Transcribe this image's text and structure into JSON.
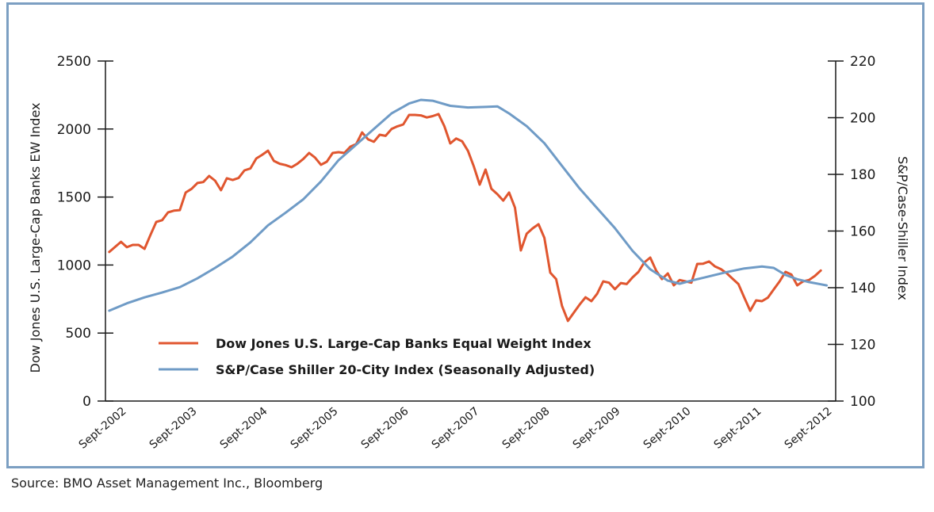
{
  "chart_data": {
    "type": "line",
    "title": "",
    "source_note": "Source: BMO Asset Management Inc., Bloomberg",
    "x_tick_labels": [
      "Sept-2002",
      "Sept-2003",
      "Sept-2004",
      "Sept-2005",
      "Sept-2006",
      "Sept-2007",
      "Sept-2008",
      "Sept-2009",
      "Sept-2010",
      "Sept-2011",
      "Sept-2012"
    ],
    "x_unit": "months since Sept-2002",
    "xlim": [
      -3,
      120
    ],
    "y_left": {
      "label": "Dow Jones U.S. Large-Cap Banks EW Index",
      "ylim": [
        0,
        2500
      ],
      "ticks": [
        0,
        500,
        1000,
        1500,
        2000,
        2500
      ]
    },
    "y_right": {
      "label": "S&P/Case-Shiller Index",
      "ylim": [
        100,
        220
      ],
      "ticks": [
        100,
        120,
        140,
        160,
        180,
        200,
        220
      ]
    },
    "grid": false,
    "legend_position": "lower-left-inside",
    "series": [
      {
        "name": "Dow Jones U.S. Large-Cap Banks Equal Weight Index",
        "axis": "left",
        "color": "#e0562f",
        "points": [
          [
            -3,
            1096
          ],
          [
            -1,
            1171
          ],
          [
            0,
            1131
          ],
          [
            1,
            1148
          ],
          [
            2,
            1148
          ],
          [
            3,
            1119
          ],
          [
            4,
            1220
          ],
          [
            5,
            1317
          ],
          [
            6,
            1330
          ],
          [
            7,
            1387
          ],
          [
            8,
            1400
          ],
          [
            9,
            1404
          ],
          [
            10,
            1533
          ],
          [
            11,
            1560
          ],
          [
            12,
            1603
          ],
          [
            13,
            1610
          ],
          [
            14,
            1655
          ],
          [
            15,
            1620
          ],
          [
            16,
            1550
          ],
          [
            17,
            1638
          ],
          [
            18,
            1625
          ],
          [
            19,
            1640
          ],
          [
            20,
            1696
          ],
          [
            21,
            1710
          ],
          [
            22,
            1783
          ],
          [
            23,
            1810
          ],
          [
            24,
            1841
          ],
          [
            25,
            1766
          ],
          [
            26,
            1745
          ],
          [
            27,
            1735
          ],
          [
            28,
            1719
          ],
          [
            29,
            1745
          ],
          [
            30,
            1780
          ],
          [
            31,
            1824
          ],
          [
            32,
            1790
          ],
          [
            33,
            1737
          ],
          [
            34,
            1760
          ],
          [
            35,
            1824
          ],
          [
            36,
            1830
          ],
          [
            37,
            1824
          ],
          [
            38,
            1870
          ],
          [
            39,
            1890
          ],
          [
            40,
            1975
          ],
          [
            41,
            1925
          ],
          [
            42,
            1906
          ],
          [
            43,
            1958
          ],
          [
            44,
            1950
          ],
          [
            45,
            2000
          ],
          [
            46,
            2020
          ],
          [
            47,
            2034
          ],
          [
            48,
            2104
          ],
          [
            49,
            2104
          ],
          [
            50,
            2100
          ],
          [
            51,
            2085
          ],
          [
            52,
            2095
          ],
          [
            53,
            2110
          ],
          [
            54,
            2020
          ],
          [
            55,
            1894
          ],
          [
            56,
            1930
          ],
          [
            57,
            1910
          ],
          [
            58,
            1840
          ],
          [
            59,
            1725
          ],
          [
            60,
            1591
          ],
          [
            61,
            1702
          ],
          [
            62,
            1560
          ],
          [
            63,
            1521
          ],
          [
            64,
            1474
          ],
          [
            65,
            1533
          ],
          [
            66,
            1422
          ],
          [
            67,
            1107
          ],
          [
            68,
            1230
          ],
          [
            69,
            1270
          ],
          [
            70,
            1300
          ],
          [
            71,
            1200
          ],
          [
            72,
            944
          ],
          [
            73,
            897
          ],
          [
            74,
            700
          ],
          [
            75,
            589
          ],
          [
            76,
            650
          ],
          [
            77,
            710
          ],
          [
            78,
            763
          ],
          [
            79,
            734
          ],
          [
            80,
            790
          ],
          [
            81,
            880
          ],
          [
            82,
            870
          ],
          [
            83,
            822
          ],
          [
            84,
            868
          ],
          [
            85,
            860
          ],
          [
            86,
            909
          ],
          [
            87,
            950
          ],
          [
            88,
            1020
          ],
          [
            89,
            1055
          ],
          [
            90,
            960
          ],
          [
            91,
            897
          ],
          [
            92,
            938
          ],
          [
            93,
            851
          ],
          [
            94,
            890
          ],
          [
            95,
            880
          ],
          [
            96,
            870
          ],
          [
            97,
            1008
          ],
          [
            98,
            1010
          ],
          [
            99,
            1026
          ],
          [
            100,
            990
          ],
          [
            101,
            970
          ],
          [
            102,
            940
          ],
          [
            103,
            900
          ],
          [
            104,
            860
          ],
          [
            105,
            760
          ],
          [
            106,
            664
          ],
          [
            107,
            740
          ],
          [
            108,
            734
          ],
          [
            109,
            760
          ],
          [
            110,
            820
          ],
          [
            111,
            880
          ],
          [
            112,
            950
          ],
          [
            113,
            930
          ],
          [
            114,
            851
          ],
          [
            115,
            880
          ],
          [
            116,
            890
          ],
          [
            117,
            920
          ],
          [
            118,
            960
          ]
        ]
      },
      {
        "name": "S&P/Case Shiller 20-City Index (Seasonally Adjusted)",
        "axis": "right",
        "color": "#6f9bc6",
        "points": [
          [
            -3,
            131.9
          ],
          [
            0,
            134.5
          ],
          [
            3,
            136.6
          ],
          [
            6,
            138.3
          ],
          [
            9,
            140.2
          ],
          [
            12,
            143.3
          ],
          [
            15,
            147.0
          ],
          [
            18,
            151.0
          ],
          [
            21,
            156.0
          ],
          [
            24,
            162.0
          ],
          [
            27,
            166.5
          ],
          [
            30,
            171.2
          ],
          [
            33,
            177.5
          ],
          [
            36,
            185.0
          ],
          [
            39,
            190.5
          ],
          [
            42,
            196.0
          ],
          [
            45,
            201.5
          ],
          [
            48,
            205.0
          ],
          [
            50,
            206.3
          ],
          [
            52,
            206.0
          ],
          [
            55,
            204.2
          ],
          [
            58,
            203.6
          ],
          [
            61,
            203.8
          ],
          [
            63,
            204.0
          ],
          [
            65,
            201.5
          ],
          [
            68,
            197.0
          ],
          [
            71,
            191.0
          ],
          [
            74,
            183.0
          ],
          [
            77,
            175.0
          ],
          [
            80,
            168.0
          ],
          [
            83,
            161.0
          ],
          [
            86,
            153.0
          ],
          [
            89,
            146.5
          ],
          [
            92,
            142.5
          ],
          [
            94,
            141.4
          ],
          [
            96,
            142.5
          ],
          [
            99,
            144.0
          ],
          [
            102,
            145.5
          ],
          [
            105,
            146.8
          ],
          [
            108,
            147.5
          ],
          [
            110,
            147.0
          ],
          [
            112,
            144.5
          ],
          [
            114,
            143.0
          ],
          [
            116,
            142.0
          ],
          [
            118,
            141.2
          ],
          [
            119,
            140.8
          ]
        ]
      }
    ]
  }
}
